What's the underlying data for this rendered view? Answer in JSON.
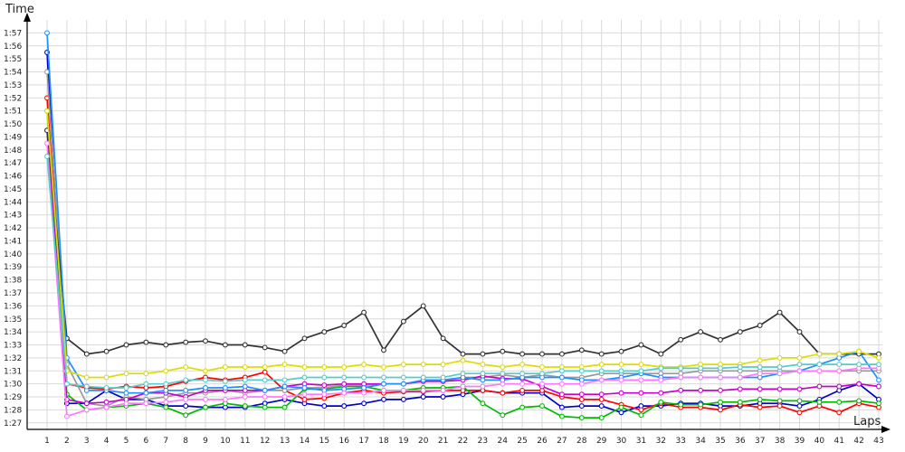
{
  "chart_data": {
    "type": "line",
    "title": "",
    "xlabel": "Laps",
    "ylabel": "Time",
    "x": [
      1,
      2,
      3,
      4,
      5,
      6,
      7,
      8,
      9,
      10,
      11,
      12,
      13,
      14,
      15,
      16,
      17,
      18,
      19,
      20,
      21,
      22,
      23,
      24,
      25,
      26,
      27,
      28,
      29,
      30,
      31,
      32,
      33,
      34,
      35,
      36,
      37,
      38,
      39,
      40,
      41,
      42,
      43
    ],
    "y_ticks": [
      "1:27",
      "1:28",
      "1:29",
      "1:30",
      "1:31",
      "1:32",
      "1:33",
      "1:34",
      "1:35",
      "1:36",
      "1:37",
      "1:38",
      "1:39",
      "1:40",
      "1:41",
      "1:42",
      "1:43",
      "1:44",
      "1:45",
      "1:46",
      "1:47",
      "1:48",
      "1:49",
      "1:50",
      "1:51",
      "1:52",
      "1:53",
      "1:54",
      "1:55",
      "1:56",
      "1:57"
    ],
    "ylim": [
      86.5,
      118
    ],
    "grid": true,
    "series": [
      {
        "color": "#0000cc",
        "values": [
          115.5,
          88.5,
          88.5,
          89.5,
          88.8,
          88.8,
          88.3,
          88.3,
          88.2,
          88.2,
          88.2,
          88.5,
          88.8,
          88.5,
          88.3,
          88.3,
          88.5,
          88.8,
          88.8,
          89,
          89,
          89.2,
          89.5,
          89.3,
          89.3,
          89.3,
          88.2,
          88.3,
          88.3,
          87.8,
          88.3,
          88.3,
          88.5,
          88.5,
          88.3,
          88.3,
          88.5,
          88.5,
          88.3,
          88.8,
          89.5,
          90,
          88.8
        ]
      },
      {
        "color": "#ff0000",
        "values": [
          112,
          90,
          89.7,
          89.6,
          89.8,
          89.7,
          89.8,
          90.2,
          90.5,
          90.3,
          90.5,
          90.9,
          89.5,
          88.8,
          88.9,
          89.3,
          89.5,
          89.3,
          89.4,
          89.4,
          89.5,
          89.5,
          89.5,
          89.3,
          89.5,
          89.5,
          89,
          88.8,
          88.8,
          88.4,
          88,
          88.5,
          88.2,
          88.2,
          88,
          88.4,
          88.2,
          88.3,
          87.8,
          88.3,
          87.8,
          88.5,
          88.2
        ]
      },
      {
        "color": "#00bb00",
        "values": [
          111,
          89.2,
          88,
          88.2,
          88.3,
          88.5,
          88.2,
          87.6,
          88.2,
          88.5,
          88.3,
          88.2,
          88.2,
          89.6,
          89.6,
          89.8,
          89.8,
          89.5,
          89.5,
          89.7,
          89.7,
          89.8,
          88.5,
          87.6,
          88.2,
          88.3,
          87.5,
          87.4,
          87.4,
          88.2,
          87.6,
          88.6,
          88.4,
          88.4,
          88.6,
          88.6,
          88.8,
          88.7,
          88.7,
          88.6,
          88.6,
          88.7,
          88.5
        ]
      },
      {
        "color": "#999999",
        "values": [
          114,
          91.5,
          88.5,
          88.3,
          89,
          88.8,
          89,
          89.3,
          89.3,
          89.5,
          89.3,
          89.5,
          89.5,
          89.7,
          89.7,
          89.9,
          89.9,
          90,
          90,
          90.2,
          90.2,
          90.5,
          90.5,
          90.7,
          90.5,
          90.7,
          90.5,
          90.5,
          90.8,
          90.8,
          90.8,
          90.8,
          90.8,
          91,
          91,
          91,
          91,
          91,
          91,
          91,
          91,
          91,
          91
        ]
      },
      {
        "color": "#cc00cc",
        "values": [
          109.5,
          88.8,
          88.5,
          88.6,
          88.8,
          89.3,
          89.3,
          89,
          89.5,
          89.5,
          89.5,
          89.5,
          89.8,
          90,
          89.9,
          90,
          90,
          90,
          90,
          90.2,
          90.2,
          90.3,
          90.6,
          90.4,
          90.4,
          89.8,
          89.2,
          89.2,
          89.2,
          89.3,
          89.3,
          89.3,
          89.5,
          89.5,
          89.5,
          89.6,
          89.6,
          89.6,
          89.6,
          89.8,
          89.8,
          90,
          89.8
        ]
      },
      {
        "color": "#333333",
        "values": [
          109.5,
          93.5,
          92.3,
          92.5,
          93,
          93.2,
          93,
          93.2,
          93.3,
          93,
          93,
          92.8,
          92.5,
          93.5,
          94,
          94.5,
          95.5,
          92.6,
          94.8,
          96,
          93.5,
          92.3,
          92.3,
          92.5,
          92.3,
          92.3,
          92.3,
          92.6,
          92.3,
          92.5,
          93,
          92.3,
          93.4,
          94,
          93.4,
          94,
          94.5,
          95.5,
          94,
          92.3,
          92.3,
          92.3,
          92.3
        ]
      },
      {
        "color": "#1e90ff",
        "values": [
          117,
          92,
          89.5,
          89.5,
          89.3,
          89.3,
          89.5,
          89.5,
          89.7,
          89.7,
          89.8,
          89.5,
          89.8,
          89.7,
          89.5,
          89.6,
          89.7,
          90,
          90,
          90.3,
          90.3,
          90.5,
          90.3,
          90.3,
          90.5,
          90.5,
          90.5,
          90.3,
          90.3,
          90.5,
          90.8,
          90.5,
          90.5,
          90.5,
          90.5,
          90.5,
          90.5,
          90.8,
          91,
          91.5,
          92,
          92.5,
          90.3
        ]
      },
      {
        "color": "#dddd00",
        "values": [
          111,
          91,
          90.5,
          90.5,
          90.8,
          90.8,
          91,
          91.3,
          91,
          91.3,
          91.3,
          91.3,
          91.5,
          91.3,
          91.3,
          91.3,
          91.5,
          91.3,
          91.5,
          91.5,
          91.5,
          91.8,
          91.5,
          91.3,
          91.5,
          91.3,
          91.3,
          91.3,
          91.5,
          91.5,
          91.5,
          91.3,
          91.3,
          91.5,
          91.5,
          91.5,
          91.8,
          92,
          92,
          92.3,
          92.3,
          92.5,
          92
        ]
      },
      {
        "color": "#ff77ff",
        "values": [
          108.5,
          87.5,
          88,
          88.2,
          88.5,
          88.5,
          88.6,
          88.8,
          88.8,
          88.8,
          89,
          89,
          89,
          89.2,
          89.2,
          89.3,
          89.3,
          89.5,
          89.5,
          89.5,
          89.5,
          89.8,
          89.8,
          90,
          90,
          90,
          90,
          90,
          90.3,
          90.3,
          90.3,
          90.3,
          90.5,
          90.5,
          90.5,
          90.5,
          90.8,
          90.8,
          91,
          91,
          91,
          91.2,
          91.2
        ]
      },
      {
        "color": "#55cccc",
        "values": [
          107.5,
          90,
          89.8,
          89.7,
          89.7,
          90,
          90,
          90.3,
          90.3,
          90.2,
          90.3,
          90.3,
          90.3,
          90.5,
          90.5,
          90.5,
          90.5,
          90.5,
          90.5,
          90.5,
          90.5,
          90.8,
          90.8,
          90.8,
          90.8,
          90.8,
          91,
          91,
          91,
          91,
          91,
          91.2,
          91.2,
          91.2,
          91.2,
          91.3,
          91.3,
          91.3,
          91.5,
          91.5,
          91.5,
          91.5,
          91.5
        ]
      }
    ]
  }
}
